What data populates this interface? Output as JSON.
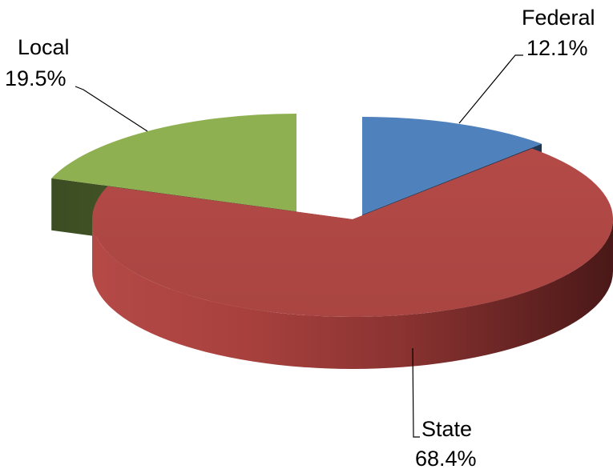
{
  "chart_data": {
    "type": "pie",
    "style": "3d-exploded",
    "title": "",
    "legend": "none",
    "slices": [
      {
        "name": "Federal",
        "value": 12.1,
        "label": "12.1%",
        "color": "#4f81bd"
      },
      {
        "name": "State",
        "value": 68.4,
        "label": "68.4%",
        "color": "#c0504d"
      },
      {
        "name": "Local",
        "value": 19.5,
        "label": "19.5%",
        "color": "#9bbb59"
      }
    ]
  }
}
